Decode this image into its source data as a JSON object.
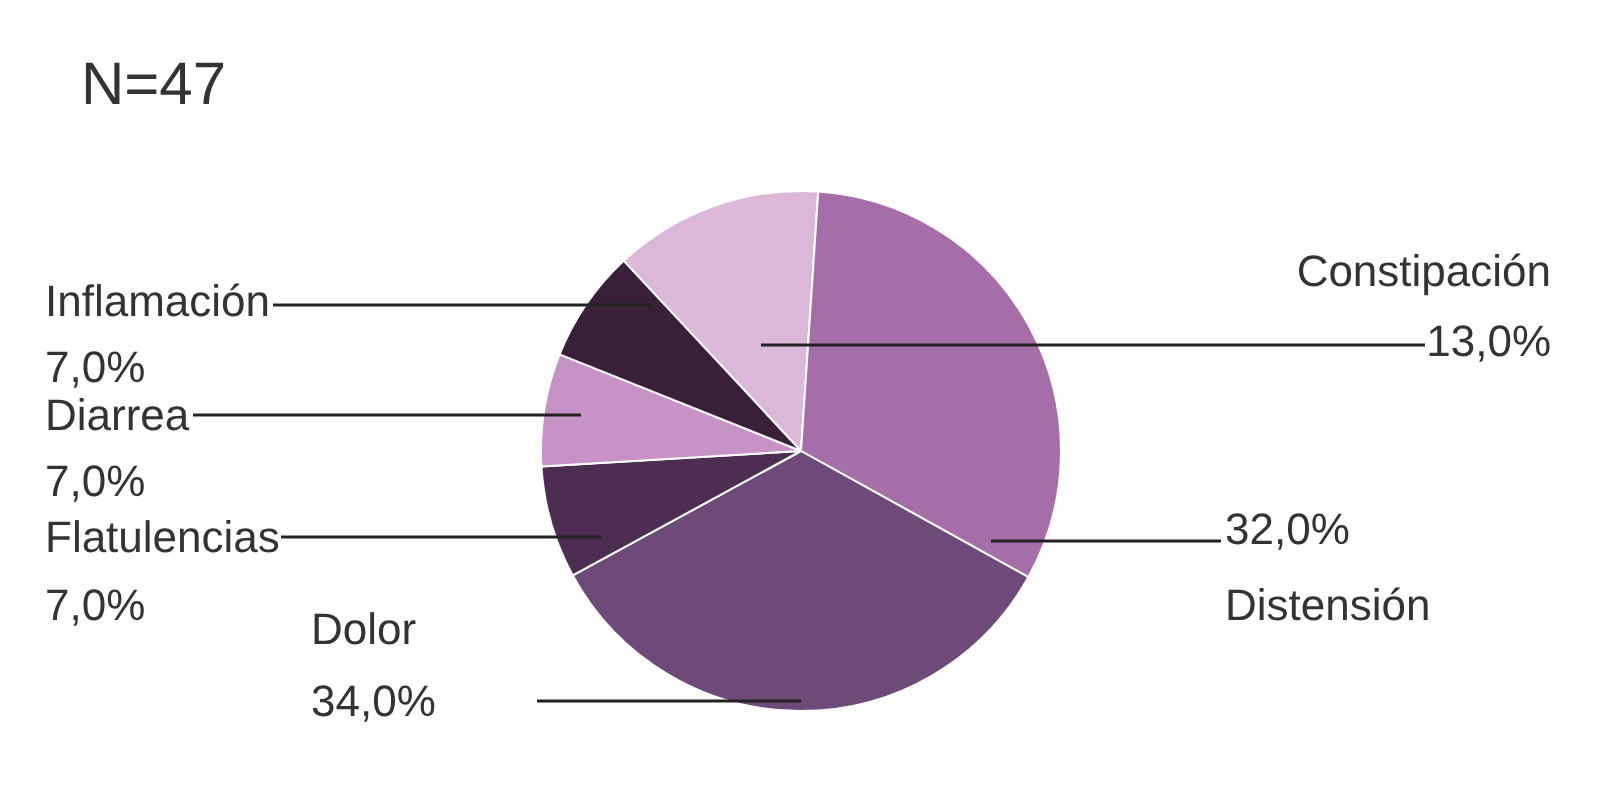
{
  "chart_data": {
    "type": "pie",
    "title": "N=47",
    "categories": [
      "Constipación",
      "Distensión",
      "Dolor",
      "Flatulencias",
      "Diarrea",
      "Inflamación"
    ],
    "values": [
      13,
      32,
      34,
      7,
      7,
      7
    ],
    "value_labels": [
      "13,0%",
      "32,0%",
      "34,0%",
      "7,0%",
      "7,0%",
      "7,0%"
    ],
    "colors": [
      "#dcb8d8",
      "#a56ea8",
      "#6e4a78",
      "#4e2d52",
      "#c792c6",
      "#3a1f38"
    ]
  }
}
